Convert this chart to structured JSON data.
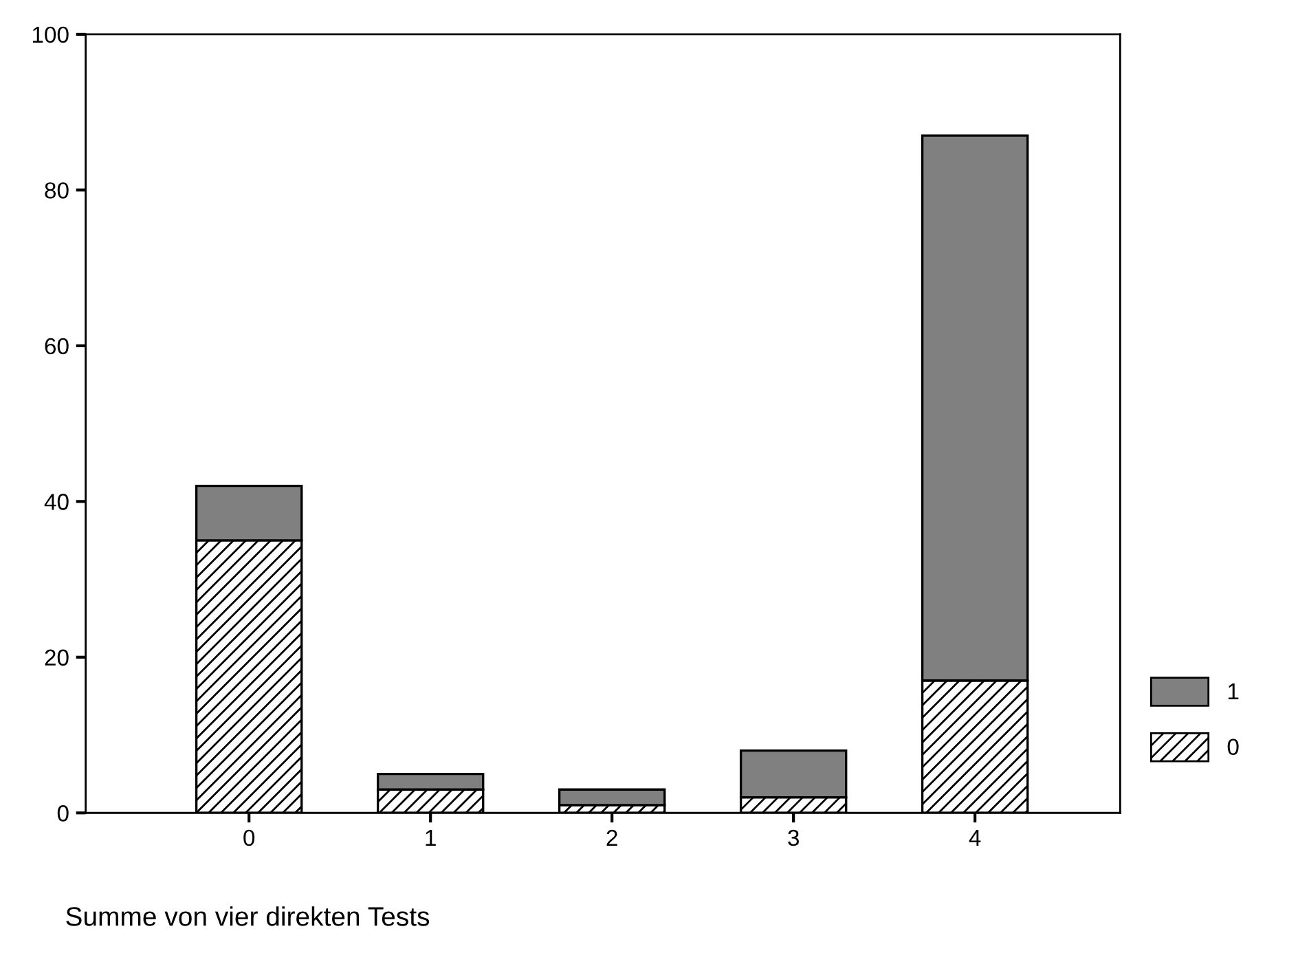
{
  "chart_data": {
    "type": "bar",
    "stacked": true,
    "xlabel": "Summe von vier direkten Tests",
    "categories": [
      "0",
      "1",
      "2",
      "3",
      "4"
    ],
    "series": [
      {
        "name": "0",
        "color": "#ffffff",
        "values": [
          35,
          3,
          1,
          2,
          17
        ]
      },
      {
        "name": "1",
        "color": "#808080",
        "values": [
          7,
          2,
          2,
          6,
          70
        ]
      }
    ],
    "ylim": [
      0,
      100
    ],
    "yticks": [
      0,
      20,
      40,
      60,
      80,
      100
    ],
    "grid": false,
    "legend": "right"
  }
}
